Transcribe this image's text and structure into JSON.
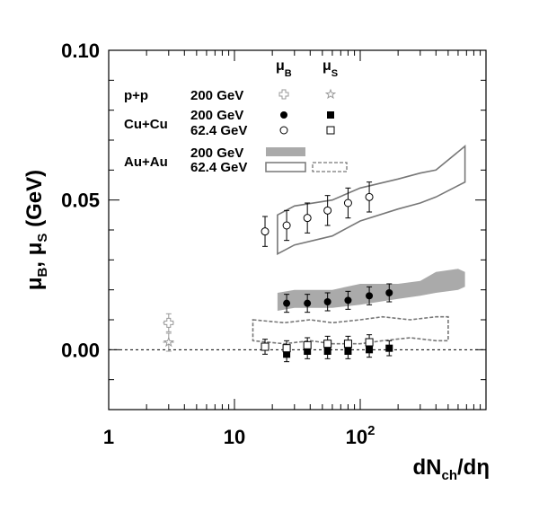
{
  "chart_data": {
    "type": "scatter",
    "xscale": "log",
    "xlim": [
      1,
      1000
    ],
    "ylim": [
      -0.02,
      0.1
    ],
    "xlabel": "dN<sub>ch</sub>/dη",
    "xlabel_main": "dN",
    "xlabel_sub": "ch",
    "xlabel_tail": "/dη",
    "ylabel": "μ_B, μ_S (GeV)",
    "ylabel_parts": {
      "mu1": "μ",
      "sub1": "B",
      "sep": ", ",
      "mu2": "μ",
      "sub2": "S",
      "unit": " (GeV)"
    },
    "x_ticks": [
      {
        "value": 1,
        "label": "1"
      },
      {
        "value": 10,
        "label": "10"
      },
      {
        "value": 100,
        "label": "10",
        "sup": "2"
      }
    ],
    "y_ticks": [
      {
        "value": 0.0,
        "label": "0.00"
      },
      {
        "value": 0.05,
        "label": "0.05"
      },
      {
        "value": 0.1,
        "label": "0.10"
      }
    ],
    "reference_line": {
      "y": 0,
      "style": "dashed"
    },
    "legend": {
      "placement": "top-left",
      "col_headers": {
        "muB": "μ",
        "muB_sub": "B",
        "muS": "μ",
        "muS_sub": "S"
      },
      "rows": [
        {
          "system": "p+p",
          "energy": "200 GeV",
          "muB_marker": "open-cross",
          "muS_marker": "open-star"
        },
        {
          "system": "Cu+Cu",
          "energy": "200 GeV",
          "muB_marker": "filled-circle",
          "muS_marker": "filled-square"
        },
        {
          "system": "",
          "energy": "62.4 GeV",
          "muB_marker": "open-circle",
          "muS_marker": "open-square"
        },
        {
          "system": "Au+Au",
          "energy": "200 GeV",
          "muB_marker": "filled-band",
          "muS_marker": ""
        },
        {
          "system": "",
          "energy": "62.4 GeV",
          "muB_marker": "open-band",
          "muS_marker": "dashed-band"
        }
      ]
    },
    "series": [
      {
        "name": "p+p 200 GeV μB",
        "marker": "open-cross",
        "color": "#999999",
        "x": [
          3.0
        ],
        "y": [
          0.009
        ],
        "yerr": [
          0.003
        ],
        "xerr": [
          0.3
        ]
      },
      {
        "name": "p+p 200 GeV μS",
        "marker": "open-star",
        "color": "#999999",
        "x": [
          3.0
        ],
        "y": [
          0.0025
        ],
        "yerr": [
          0.003
        ],
        "xerr": [
          0.3
        ]
      },
      {
        "name": "Cu+Cu 200 GeV μB",
        "marker": "filled-circle",
        "color": "#000000",
        "x": [
          26,
          38,
          55,
          80,
          118,
          170
        ],
        "y": [
          0.0155,
          0.0155,
          0.016,
          0.0165,
          0.018,
          0.019
        ],
        "yerr": [
          0.003,
          0.003,
          0.003,
          0.003,
          0.003,
          0.003
        ]
      },
      {
        "name": "Cu+Cu 62.4 GeV μB",
        "marker": "open-circle",
        "color": "#000000",
        "x": [
          17.5,
          26,
          38,
          55,
          80,
          118
        ],
        "y": [
          0.0395,
          0.0415,
          0.044,
          0.0465,
          0.049,
          0.051
        ],
        "yerr": [
          0.005,
          0.005,
          0.005,
          0.005,
          0.005,
          0.005
        ]
      },
      {
        "name": "Cu+Cu 200 GeV μS",
        "marker": "filled-square",
        "color": "#000000",
        "x": [
          26,
          38,
          55,
          80,
          118,
          170
        ],
        "y": [
          -0.0015,
          -0.0005,
          -0.0005,
          -0.0005,
          0.0,
          0.0005
        ],
        "yerr": [
          0.0025,
          0.0025,
          0.0025,
          0.0025,
          0.0025,
          0.0025
        ]
      },
      {
        "name": "Cu+Cu 62.4 GeV μS",
        "marker": "open-square",
        "color": "#000000",
        "x": [
          17.5,
          26,
          38,
          55,
          80,
          118
        ],
        "y": [
          0.001,
          0.0005,
          0.0015,
          0.002,
          0.002,
          0.0025
        ],
        "yerr": [
          0.0025,
          0.0025,
          0.0025,
          0.0025,
          0.0025,
          0.0025
        ]
      }
    ],
    "bands": [
      {
        "name": "Au+Au 200 GeV μB",
        "style": "filled",
        "color": "#aaaaaa",
        "x": [
          22,
          30,
          60,
          100,
          200,
          300,
          400,
          600,
          680
        ],
        "upper": [
          0.019,
          0.02,
          0.02,
          0.022,
          0.022,
          0.023,
          0.026,
          0.027,
          0.026
        ],
        "lower": [
          0.013,
          0.014,
          0.014,
          0.015,
          0.017,
          0.018,
          0.019,
          0.02,
          0.021
        ]
      },
      {
        "name": "Au+Au 62.4 GeV μB",
        "style": "outline",
        "color": "#777777",
        "x": [
          22,
          30,
          60,
          100,
          200,
          300,
          400,
          680
        ],
        "upper": [
          0.045,
          0.048,
          0.05,
          0.054,
          0.057,
          0.059,
          0.06,
          0.068
        ],
        "lower": [
          0.032,
          0.035,
          0.038,
          0.043,
          0.047,
          0.049,
          0.051,
          0.056
        ]
      },
      {
        "name": "Au+Au 62.4 GeV μS",
        "style": "dashed",
        "color": "#777777",
        "x": [
          14,
          25,
          40,
          60,
          100,
          150,
          250,
          400,
          500
        ],
        "upper": [
          0.01,
          0.009,
          0.01,
          0.009,
          0.01,
          0.011,
          0.01,
          0.011,
          0.011
        ],
        "lower": [
          0.003,
          0.002,
          0.003,
          0.002,
          0.002,
          0.003,
          0.004,
          0.003,
          0.003
        ]
      }
    ]
  }
}
